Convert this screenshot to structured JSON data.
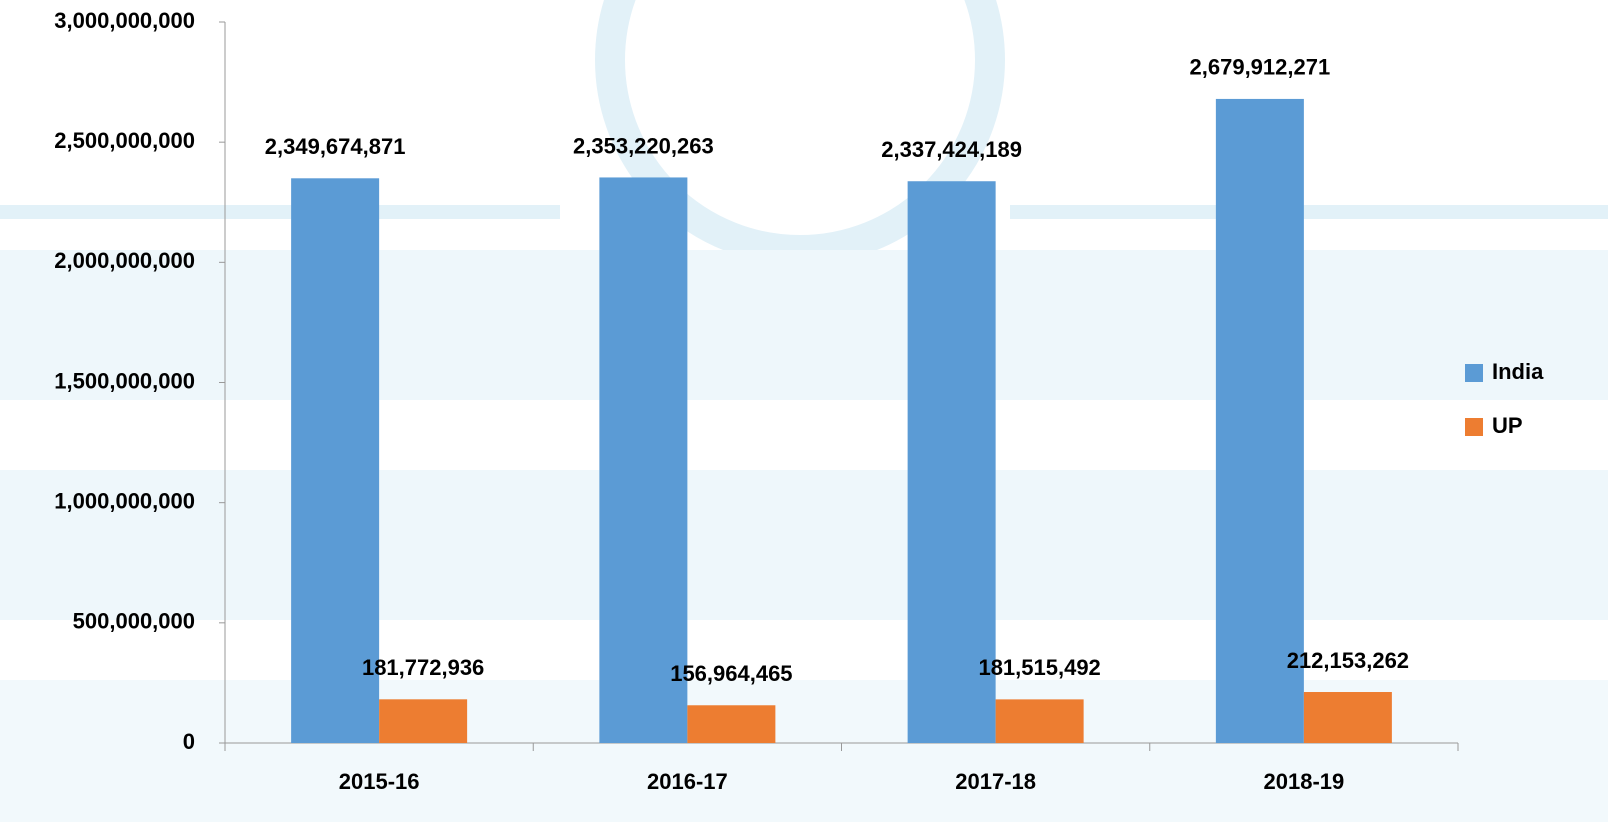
{
  "chart_data": {
    "type": "bar",
    "categories": [
      "2015-16",
      "2016-17",
      "2017-18",
      "2018-19"
    ],
    "series": [
      {
        "name": "India",
        "color": "#5b9bd5",
        "values": [
          2349674871,
          2353220263,
          2337424189,
          2679912271
        ],
        "value_labels": [
          "2,349,674,871",
          "2,353,220,263",
          "2,337,424,189",
          "2,679,912,271"
        ]
      },
      {
        "name": "UP",
        "color": "#ed7d31",
        "values": [
          181772936,
          156964465,
          181515492,
          212153262
        ],
        "value_labels": [
          "181,772,936",
          "156,964,465",
          "181,515,492",
          "212,153,262"
        ]
      }
    ],
    "ylim": [
      0,
      3000000000
    ],
    "yticks": [
      0,
      {
        "value": 500000000,
        "label": "500,000,000"
      },
      {
        "value": 1000000000,
        "label": "1,000,000,000"
      },
      {
        "value": 1500000000,
        "label": "1,500,000,000"
      },
      {
        "value": 2000000000,
        "label": "2,000,000,000"
      },
      {
        "value": 2500000000,
        "label": "2,500,000,000"
      },
      {
        "value": 3000000000,
        "label": "3,000,000,000"
      }
    ],
    "grid": false,
    "legend": "right"
  }
}
